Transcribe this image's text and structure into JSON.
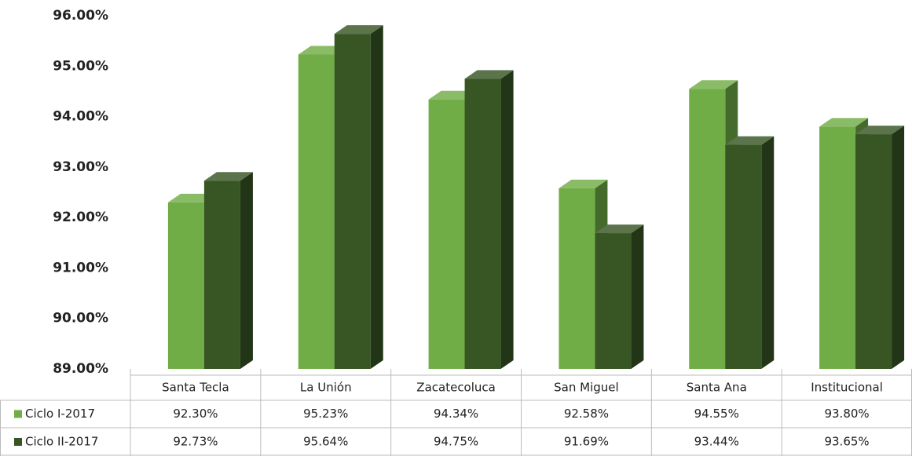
{
  "chart_data": {
    "type": "bar3d",
    "categories": [
      "Santa Tecla",
      "La Unión",
      "Zacatecoluca",
      "San Miguel",
      "Santa Ana",
      "Institucional"
    ],
    "series": [
      {
        "name": "Ciclo I-2017",
        "color": "#70ad47",
        "values": [
          92.3,
          95.23,
          94.34,
          92.58,
          94.55,
          93.8
        ],
        "value_labels": [
          "92.30%",
          "95.23%",
          "94.34%",
          "92.58%",
          "94.55%",
          "93.80%"
        ]
      },
      {
        "name": "Ciclo II-2017",
        "color": "#375623",
        "values": [
          92.73,
          95.64,
          94.75,
          91.69,
          93.44,
          93.65
        ],
        "value_labels": [
          "92.73%",
          "95.64%",
          "94.75%",
          "91.69%",
          "93.44%",
          "93.65%"
        ]
      }
    ],
    "ylim": [
      89,
      96
    ],
    "yticks": [
      {
        "value": 89,
        "label": "89.00%"
      },
      {
        "value": 90,
        "label": "90.00%"
      },
      {
        "value": 91,
        "label": "91.00%"
      },
      {
        "value": 92,
        "label": "92.00%"
      },
      {
        "value": 93,
        "label": "93.00%"
      },
      {
        "value": 94,
        "label": "94.00%"
      },
      {
        "value": 95,
        "label": "95.00%"
      },
      {
        "value": 96,
        "label": "96.00%"
      }
    ],
    "grid": false
  }
}
